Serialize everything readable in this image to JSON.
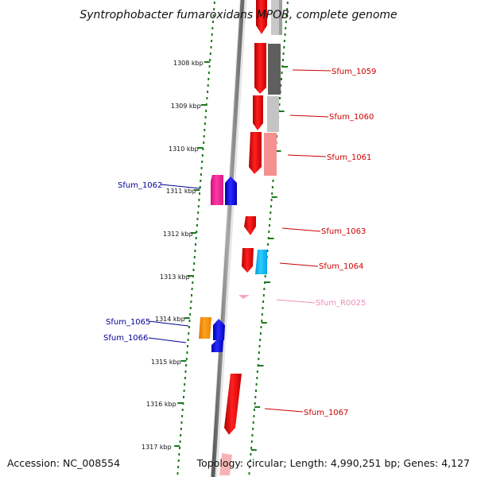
{
  "title": "Syntrophobacter fumaroxidans MPOB, complete genome",
  "accession_text": "Accession: NC_008554",
  "topology_text": "Topology: circular; Length: 4,990,251 bp; Genes: 4,127",
  "kbp_ticks": [
    "1308 kbp",
    "1309 kbp",
    "1310 kbp",
    "1311 kbp",
    "1312 kbp",
    "1313 kbp",
    "1314 kbp",
    "1315 kbp",
    "1316 kbp",
    "1317 kbp"
  ],
  "gene_labels": [
    {
      "name": "Sfum_1059",
      "color": "#cc0000"
    },
    {
      "name": "Sfum_1060",
      "color": "#cc0000"
    },
    {
      "name": "Sfum_1061",
      "color": "#cc0000"
    },
    {
      "name": "Sfum_1062",
      "color": "#000099"
    },
    {
      "name": "Sfum_1063",
      "color": "#cc0000"
    },
    {
      "name": "Sfum_1064",
      "color": "#cc0000"
    },
    {
      "name": "Sfum_R0025",
      "color": "#f08cb8"
    },
    {
      "name": "Sfum_1065",
      "color": "#000099"
    },
    {
      "name": "Sfum_1066",
      "color": "#000099"
    },
    {
      "name": "Sfum_1067",
      "color": "#cc0000"
    }
  ],
  "colors": {
    "axis": "#7a7a7a",
    "tick_dots": "#1a7a1a",
    "forward_gene": "#ff0000",
    "reverse_gene": "#0000ee",
    "magenta_gene": "#ff1493",
    "orange_gene": "#ff8c00",
    "cyan_gene": "#00bfff"
  }
}
